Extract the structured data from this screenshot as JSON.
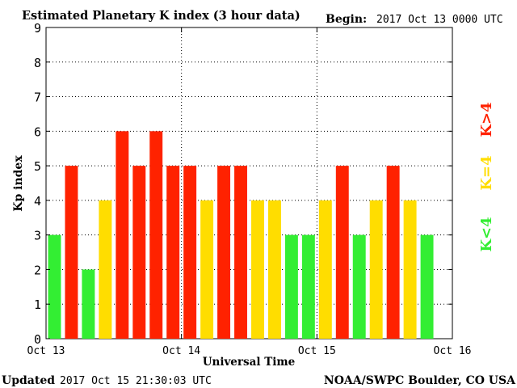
{
  "chart_data": {
    "type": "bar",
    "title": "Estimated Planetary K index (3 hour data)",
    "begin_label": "Begin:",
    "begin_value": "2017 Oct 13 0000 UTC",
    "xlabel": "Universal Time",
    "ylabel": "Kp index",
    "ylim": [
      0,
      9
    ],
    "yticks": [
      "0",
      "1",
      "2",
      "3",
      "4",
      "5",
      "6",
      "7",
      "8",
      "9"
    ],
    "xticks": [
      "Oct 13",
      "Oct 14",
      "Oct 15",
      "Oct 16"
    ],
    "grid": true,
    "bars_per_day": 8,
    "values": [
      3,
      5,
      2,
      4,
      6,
      5,
      6,
      5,
      5,
      4,
      5,
      5,
      4,
      4,
      3,
      3,
      4,
      5,
      3,
      4,
      5,
      4,
      3
    ],
    "legend": [
      {
        "label": "K<4",
        "color": "#33ee33"
      },
      {
        "label": "K=4",
        "color": "#ffdd00"
      },
      {
        "label": "K>4",
        "color": "#ff2200"
      }
    ],
    "colors": {
      "low": "#33ee33",
      "mid": "#ffdd00",
      "high": "#ff2200"
    }
  },
  "footer": {
    "updated_label": "Updated",
    "updated_value": "2017 Oct 15 21:30:03 UTC",
    "source": "NOAA/SWPC Boulder, CO USA"
  }
}
